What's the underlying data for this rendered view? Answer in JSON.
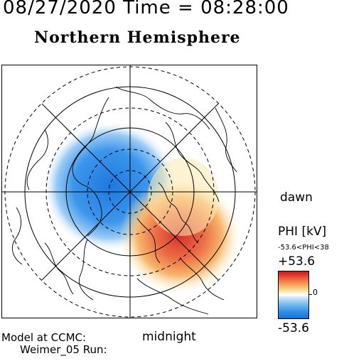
{
  "header": {
    "datetime": "08/27/2020 Time = 08:28:00",
    "title": "Northern Hemisphere"
  },
  "map": {
    "labels": {
      "dawn": "dawn",
      "midnight": "midnight"
    },
    "features": [
      "polar-grid",
      "coastlines",
      "potential-patterns"
    ],
    "colors": {
      "negative": "#2a86e6",
      "positive": "#e0442f",
      "neutral": "#ffffff"
    }
  },
  "colorbar": {
    "variable": "PHI [kV]",
    "range_text": "-53.6<PHI<38",
    "max": "+53.6",
    "zero": "0",
    "min": "-53.6"
  },
  "footer": {
    "model": "Model at CCMC:",
    "run": "Weimer_05 Run:"
  }
}
